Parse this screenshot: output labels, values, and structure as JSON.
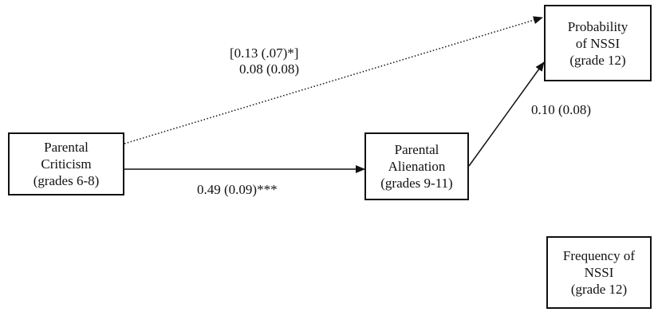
{
  "nodes": {
    "criticism": [
      "Parental",
      "Criticism",
      "(grades 6-8)"
    ],
    "alienation": [
      "Parental",
      "Alienation",
      "(grades 9-11)"
    ],
    "prob_nssi": [
      "Probability",
      "of NSSI",
      "(grade 12)"
    ],
    "freq_nssi": [
      "Frequency of",
      "NSSI",
      "(grade 12)"
    ]
  },
  "paths": {
    "criticism_to_prob_line1": "[0.13 (.07)*]",
    "criticism_to_prob_line2": "0.08 (0.08)",
    "criticism_to_alienation": "0.49 (0.09)***",
    "alienation_to_prob": "0.10 (0.08)"
  },
  "colors": {
    "stroke": "#111111",
    "background": "#ffffff"
  }
}
